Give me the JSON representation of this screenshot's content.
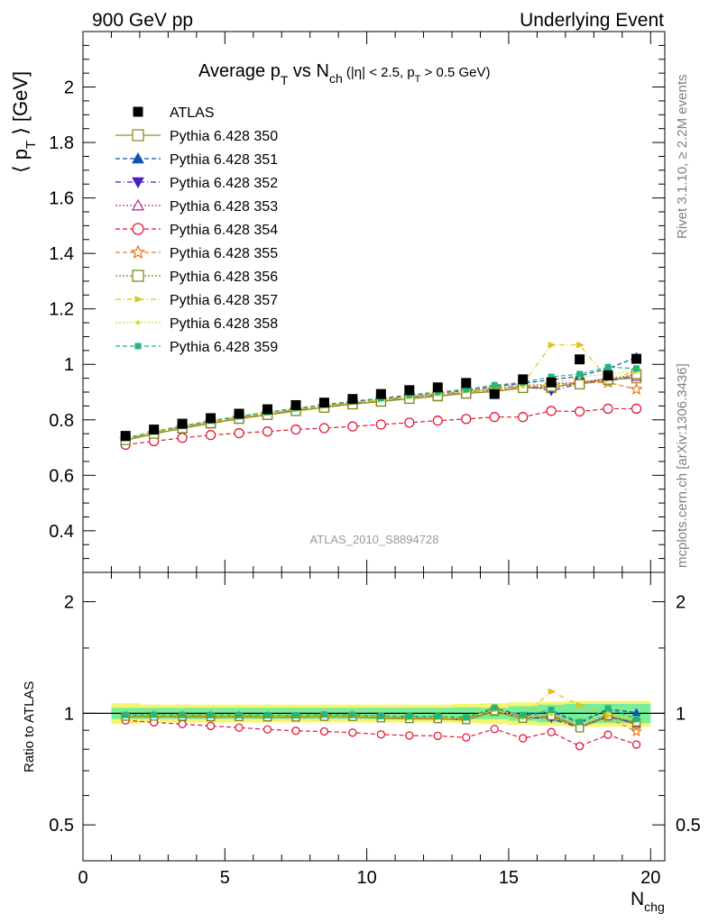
{
  "header": {
    "left": "900 GeV pp",
    "right": "Underlying Event"
  },
  "title": {
    "pre": "Average p",
    "sub1": "T",
    "mid": " vs N",
    "sub2": "ch",
    "paren_a": " (|η| < 2.5, p",
    "sub3": "T",
    "paren_b": " > 0.5 GeV)"
  },
  "ylabel": {
    "open": "⟨ p",
    "sub": "T",
    "close": " ⟩ [GeV]"
  },
  "ratio_ylabel": "Ratio to ATLAS",
  "xlabel": {
    "main": "N",
    "sub": "chg"
  },
  "analysis_id": "ATLAS_2010_S8894728",
  "side_text_top": "Rivet 3.1.10, ≥ 2.2M events",
  "side_text_bottom": "mcplots.cern.ch [arXiv:1306.3436]",
  "colors": {
    "data": "#000000",
    "s350": "#8f8f26",
    "s351": "#0d52b8",
    "s352": "#4b1fbf",
    "s353": "#b8339e",
    "s354": "#e01a36",
    "s355": "#ee7a1b",
    "s356": "#7a8a1f",
    "s357": "#e0c21a",
    "s358": "#d8d825",
    "s359": "#1fb87a",
    "band_inner": "#79ee99",
    "band_outer": "#f6f66e"
  },
  "chart_data": {
    "type": "scatter",
    "x": [
      1.5,
      2.5,
      3.5,
      4.5,
      5.5,
      6.5,
      7.5,
      8.5,
      9.5,
      10.5,
      11.5,
      12.5,
      13.5,
      14.5,
      15.5,
      16.5,
      17.5,
      18.5,
      19.5
    ],
    "xlim": [
      0,
      20.5
    ],
    "ylim": [
      0.25,
      2.2
    ],
    "ratio_ylim": [
      0.4,
      2.4
    ],
    "main_ticks": [
      "0.4",
      "0.6",
      "0.8",
      "1",
      "1.2",
      "1.4",
      "1.6",
      "1.8",
      "2"
    ],
    "ratio_ticks": [
      "0.5",
      "1",
      "2"
    ],
    "x_ticks": [
      "0",
      "5",
      "10",
      "15",
      "20"
    ],
    "series": [
      {
        "name": "ATLAS",
        "marker": "square-filled",
        "line": "none",
        "color": "#000000",
        "values": [
          0.742,
          0.765,
          0.786,
          0.806,
          0.822,
          0.838,
          0.853,
          0.862,
          0.875,
          0.893,
          0.907,
          0.917,
          0.933,
          0.893,
          0.946,
          0.935,
          1.018,
          0.96,
          1.02
        ]
      },
      {
        "name": "Pythia 6.428 350",
        "marker": "square-open",
        "line": "solid",
        "color": "#8f8f26",
        "values": [
          0.726,
          0.749,
          0.769,
          0.787,
          0.804,
          0.818,
          0.832,
          0.845,
          0.857,
          0.866,
          0.876,
          0.885,
          0.895,
          0.902,
          0.915,
          0.915,
          0.935,
          0.945,
          0.95
        ]
      },
      {
        "name": "Pythia 6.428 351",
        "marker": "triangle-up-filled",
        "line": "dashed",
        "color": "#0d52b8",
        "values": [
          0.733,
          0.757,
          0.777,
          0.796,
          0.812,
          0.826,
          0.84,
          0.853,
          0.865,
          0.876,
          0.886,
          0.896,
          0.906,
          0.92,
          0.932,
          0.944,
          0.958,
          0.985,
          1.025
        ]
      },
      {
        "name": "Pythia 6.428 352",
        "marker": "triangle-down-filled",
        "line": "dashdot",
        "color": "#4b1fbf",
        "values": [
          0.73,
          0.754,
          0.774,
          0.793,
          0.809,
          0.822,
          0.836,
          0.849,
          0.86,
          0.871,
          0.881,
          0.891,
          0.9,
          0.91,
          0.922,
          0.905,
          0.93,
          0.94,
          0.96
        ]
      },
      {
        "name": "Pythia 6.428 353",
        "marker": "triangle-up-open",
        "line": "dotted",
        "color": "#b8339e",
        "values": [
          0.73,
          0.754,
          0.775,
          0.793,
          0.809,
          0.824,
          0.838,
          0.85,
          0.862,
          0.873,
          0.883,
          0.893,
          0.903,
          0.913,
          0.923,
          0.93,
          0.935,
          0.95,
          0.955
        ]
      },
      {
        "name": "Pythia 6.428 354",
        "marker": "circle-open",
        "line": "dashed",
        "color": "#e01a36",
        "values": [
          0.71,
          0.723,
          0.735,
          0.745,
          0.752,
          0.758,
          0.765,
          0.77,
          0.776,
          0.783,
          0.79,
          0.797,
          0.803,
          0.81,
          0.81,
          0.832,
          0.83,
          0.84,
          0.84
        ]
      },
      {
        "name": "Pythia 6.428 355",
        "marker": "star-open",
        "line": "dashed",
        "color": "#ee7a1b",
        "values": [
          0.729,
          0.752,
          0.773,
          0.791,
          0.807,
          0.822,
          0.835,
          0.848,
          0.859,
          0.87,
          0.88,
          0.89,
          0.9,
          0.91,
          0.918,
          0.925,
          0.935,
          0.935,
          0.91
        ]
      },
      {
        "name": "Pythia 6.428 356",
        "marker": "square-open",
        "line": "dotted",
        "color": "#7a8a1f",
        "values": [
          0.727,
          0.75,
          0.77,
          0.788,
          0.804,
          0.818,
          0.832,
          0.844,
          0.856,
          0.866,
          0.876,
          0.886,
          0.895,
          0.905,
          0.915,
          0.92,
          0.928,
          0.945,
          0.965
        ]
      },
      {
        "name": "Pythia 6.428 357",
        "marker": "triangle-right",
        "line": "dashdot",
        "color": "#e0c21a",
        "values": [
          0.732,
          0.755,
          0.776,
          0.795,
          0.81,
          0.825,
          0.838,
          0.85,
          0.862,
          0.873,
          0.885,
          0.895,
          0.905,
          0.915,
          0.93,
          1.07,
          1.07,
          0.945,
          0.975
        ]
      },
      {
        "name": "Pythia 6.428 358",
        "marker": "dot",
        "line": "dotted",
        "color": "#d8d825",
        "values": [
          0.731,
          0.754,
          0.774,
          0.793,
          0.809,
          0.823,
          0.837,
          0.849,
          0.861,
          0.872,
          0.882,
          0.892,
          0.902,
          0.912,
          0.92,
          0.93,
          0.955,
          0.965,
          0.975
        ]
      },
      {
        "name": "Pythia 6.428 359",
        "marker": "square-filled-small",
        "line": "dashed",
        "color": "#1fb87a",
        "values": [
          0.734,
          0.758,
          0.778,
          0.797,
          0.813,
          0.828,
          0.842,
          0.855,
          0.867,
          0.878,
          0.89,
          0.9,
          0.91,
          0.925,
          0.935,
          0.955,
          0.965,
          0.99,
          0.985
        ]
      }
    ],
    "band": {
      "inner": [
        0.035,
        0.035,
        0.035,
        0.035,
        0.035,
        0.035,
        0.035,
        0.035,
        0.035,
        0.035,
        0.035,
        0.035,
        0.037,
        0.035,
        0.045,
        0.055,
        0.06,
        0.06,
        0.06
      ],
      "outer": [
        0.065,
        0.055,
        0.055,
        0.055,
        0.055,
        0.055,
        0.055,
        0.055,
        0.055,
        0.055,
        0.055,
        0.055,
        0.06,
        0.065,
        0.07,
        0.075,
        0.08,
        0.08,
        0.08
      ]
    },
    "legend": "top-left",
    "grid": false
  }
}
